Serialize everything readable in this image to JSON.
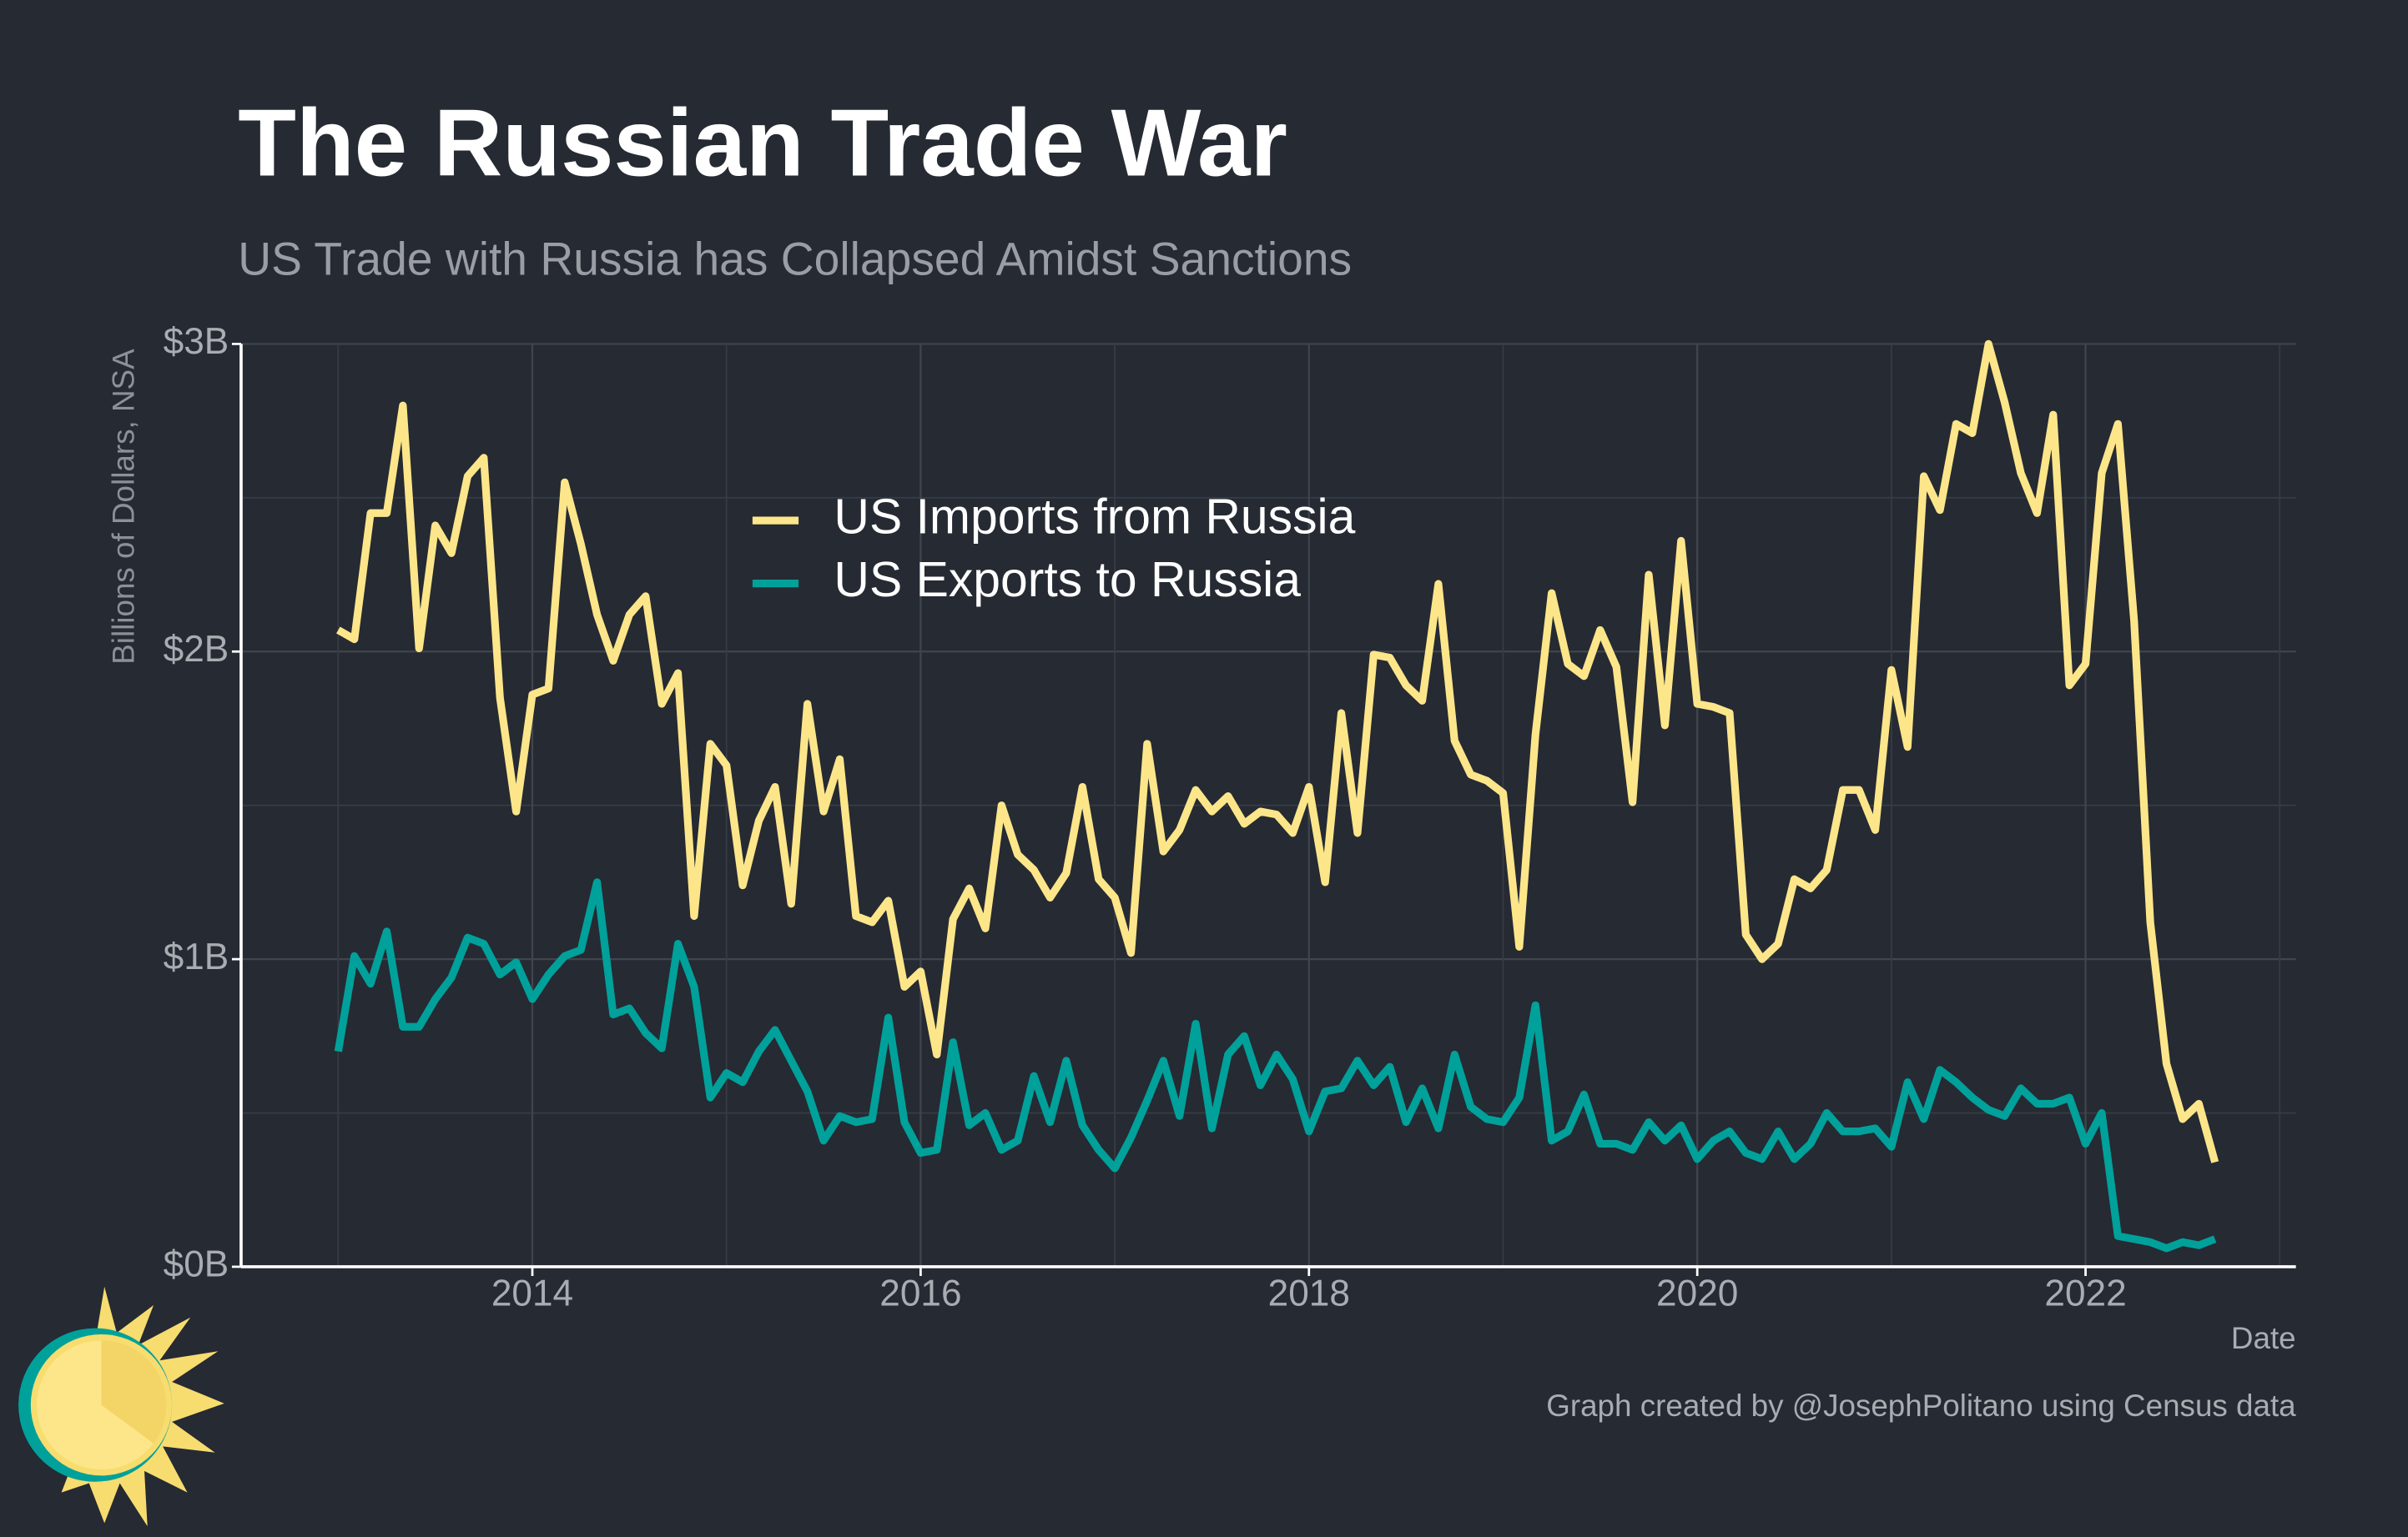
{
  "chart_data": {
    "type": "line",
    "title": "The Russian Trade War",
    "subtitle": "US Trade with Russia has Collapsed Amidst Sanctions",
    "y_label": "Billions of Dollars, NSA",
    "x_label": "Date",
    "caption": "Graph created by @JosephPolitano using Census data",
    "legend": "upper center",
    "grid": true,
    "x": [
      "2013-01",
      "2013-02",
      "2013-03",
      "2013-04",
      "2013-05",
      "2013-06",
      "2013-07",
      "2013-08",
      "2013-09",
      "2013-10",
      "2013-11",
      "2013-12",
      "2014-01",
      "2014-02",
      "2014-03",
      "2014-04",
      "2014-05",
      "2014-06",
      "2014-07",
      "2014-08",
      "2014-09",
      "2014-10",
      "2014-11",
      "2014-12",
      "2015-01",
      "2015-02",
      "2015-03",
      "2015-04",
      "2015-05",
      "2015-06",
      "2015-07",
      "2015-08",
      "2015-09",
      "2015-10",
      "2015-11",
      "2015-12",
      "2016-01",
      "2016-02",
      "2016-03",
      "2016-04",
      "2016-05",
      "2016-06",
      "2016-07",
      "2016-08",
      "2016-09",
      "2016-10",
      "2016-11",
      "2016-12",
      "2017-01",
      "2017-02",
      "2017-03",
      "2017-04",
      "2017-05",
      "2017-06",
      "2017-07",
      "2017-08",
      "2017-09",
      "2017-10",
      "2017-11",
      "2017-12",
      "2018-01",
      "2018-02",
      "2018-03",
      "2018-04",
      "2018-05",
      "2018-06",
      "2018-07",
      "2018-08",
      "2018-09",
      "2018-10",
      "2018-11",
      "2018-12",
      "2019-01",
      "2019-02",
      "2019-03",
      "2019-04",
      "2019-05",
      "2019-06",
      "2019-07",
      "2019-08",
      "2019-09",
      "2019-10",
      "2019-11",
      "2019-12",
      "2020-01",
      "2020-02",
      "2020-03",
      "2020-04",
      "2020-05",
      "2020-06",
      "2020-07",
      "2020-08",
      "2020-09",
      "2020-10",
      "2020-11",
      "2020-12",
      "2021-01",
      "2021-02",
      "2021-03",
      "2021-04",
      "2021-05",
      "2021-06",
      "2021-07",
      "2021-08",
      "2021-09",
      "2021-10",
      "2021-11",
      "2021-12",
      "2022-01",
      "2022-02",
      "2022-03",
      "2022-04",
      "2022-05",
      "2022-06",
      "2022-07",
      "2022-08",
      "2022-09"
    ],
    "series": [
      {
        "name": "US Imports from Russia",
        "color": "#fde68a",
        "values": [
          2.07,
          2.04,
          2.45,
          2.45,
          2.8,
          2.01,
          2.41,
          2.32,
          2.57,
          2.63,
          1.85,
          1.48,
          1.86,
          1.88,
          2.55,
          2.35,
          2.12,
          1.97,
          2.12,
          2.18,
          1.83,
          1.93,
          1.14,
          1.7,
          1.63,
          1.24,
          1.45,
          1.56,
          1.18,
          1.83,
          1.48,
          1.65,
          1.14,
          1.12,
          1.19,
          0.91,
          0.96,
          0.69,
          1.13,
          1.23,
          1.1,
          1.5,
          1.34,
          1.29,
          1.2,
          1.28,
          1.56,
          1.26,
          1.2,
          1.02,
          1.7,
          1.35,
          1.42,
          1.55,
          1.48,
          1.53,
          1.44,
          1.48,
          1.47,
          1.41,
          1.56,
          1.25,
          1.8,
          1.41,
          1.99,
          1.98,
          1.89,
          1.84,
          2.22,
          1.71,
          1.6,
          1.58,
          1.54,
          1.04,
          1.73,
          2.19,
          1.96,
          1.92,
          2.07,
          1.95,
          1.51,
          2.25,
          1.76,
          2.36,
          1.83,
          1.82,
          1.8,
          1.08,
          1.0,
          1.05,
          1.26,
          1.23,
          1.29,
          1.55,
          1.55,
          1.42,
          1.94,
          1.69,
          2.57,
          2.46,
          2.74,
          2.71,
          3.0,
          2.81,
          2.58,
          2.45,
          2.77,
          1.89,
          1.96,
          2.58,
          2.74,
          2.1,
          1.12,
          0.66,
          0.48,
          0.53,
          0.34
        ]
      },
      {
        "name": "US Exports to Russia",
        "color": "#00a19a",
        "values": [
          0.7,
          1.01,
          0.92,
          1.09,
          0.78,
          0.78,
          0.87,
          0.94,
          1.07,
          1.05,
          0.95,
          0.99,
          0.87,
          0.95,
          1.01,
          1.03,
          1.25,
          0.82,
          0.84,
          0.76,
          0.71,
          1.05,
          0.91,
          0.55,
          0.63,
          0.6,
          0.7,
          0.77,
          0.67,
          0.57,
          0.41,
          0.49,
          0.47,
          0.48,
          0.81,
          0.47,
          0.37,
          0.38,
          0.73,
          0.46,
          0.5,
          0.38,
          0.41,
          0.62,
          0.47,
          0.67,
          0.46,
          0.38,
          0.32,
          0.42,
          0.54,
          0.67,
          0.49,
          0.79,
          0.45,
          0.69,
          0.75,
          0.59,
          0.69,
          0.61,
          0.44,
          0.57,
          0.58,
          0.67,
          0.59,
          0.65,
          0.47,
          0.58,
          0.45,
          0.69,
          0.52,
          0.48,
          0.47,
          0.55,
          0.85,
          0.41,
          0.44,
          0.56,
          0.4,
          0.4,
          0.38,
          0.47,
          0.41,
          0.46,
          0.35,
          0.41,
          0.44,
          0.37,
          0.35,
          0.44,
          0.35,
          0.4,
          0.5,
          0.44,
          0.44,
          0.45,
          0.39,
          0.6,
          0.48,
          0.64,
          0.6,
          0.55,
          0.51,
          0.49,
          0.58,
          0.53,
          0.53,
          0.55,
          0.4,
          0.5,
          0.1,
          0.09,
          0.08,
          0.06,
          0.08,
          0.07,
          0.09
        ]
      }
    ],
    "xlim": [
      "2012-07",
      "2023-02"
    ],
    "xticks": [
      {
        "value": "2014-01",
        "label": "2014"
      },
      {
        "value": "2016-01",
        "label": "2016"
      },
      {
        "value": "2018-01",
        "label": "2018"
      },
      {
        "value": "2020-01",
        "label": "2020"
      },
      {
        "value": "2022-01",
        "label": "2022"
      }
    ],
    "ylim": [
      0,
      3
    ],
    "yticks": [
      {
        "value": 0,
        "label": "$0B"
      },
      {
        "value": 1,
        "label": "$1B"
      },
      {
        "value": 2,
        "label": "$2B"
      },
      {
        "value": 3,
        "label": "$3B"
      }
    ],
    "yminor": [
      0.5,
      1.5,
      2.5
    ]
  }
}
